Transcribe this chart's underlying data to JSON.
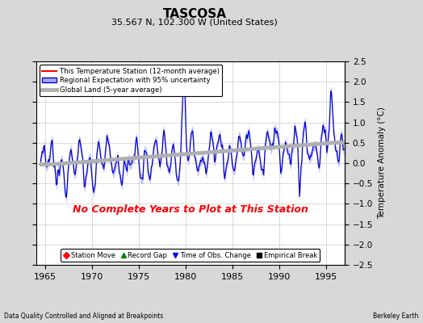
{
  "title": "TASCOSA",
  "subtitle": "35.567 N, 102.300 W (United States)",
  "ylabel": "Temperature Anomaly (°C)",
  "xlim": [
    1964.0,
    1997.0
  ],
  "ylim": [
    -2.5,
    2.5
  ],
  "yticks": [
    -2.5,
    -2,
    -1.5,
    -1,
    -0.5,
    0,
    0.5,
    1,
    1.5,
    2,
    2.5
  ],
  "xticks": [
    1965,
    1970,
    1975,
    1980,
    1985,
    1990,
    1995
  ],
  "background_color": "#d8d8d8",
  "plot_bg_color": "#ffffff",
  "no_data_text": "No Complete Years to Plot at This Station",
  "no_data_color": "red",
  "footer_left": "Data Quality Controlled and Aligned at Breakpoints",
  "footer_right": "Berkeley Earth",
  "legend_entries": [
    "This Temperature Station (12-month average)",
    "Regional Expectation with 95% uncertainty",
    "Global Land (5-year average)"
  ],
  "bottom_legend": [
    {
      "marker": "D",
      "color": "red",
      "label": "Station Move"
    },
    {
      "marker": "^",
      "color": "green",
      "label": "Record Gap"
    },
    {
      "marker": "v",
      "color": "blue",
      "label": "Time of Obs. Change"
    },
    {
      "marker": "s",
      "color": "black",
      "label": "Empirical Break"
    }
  ]
}
